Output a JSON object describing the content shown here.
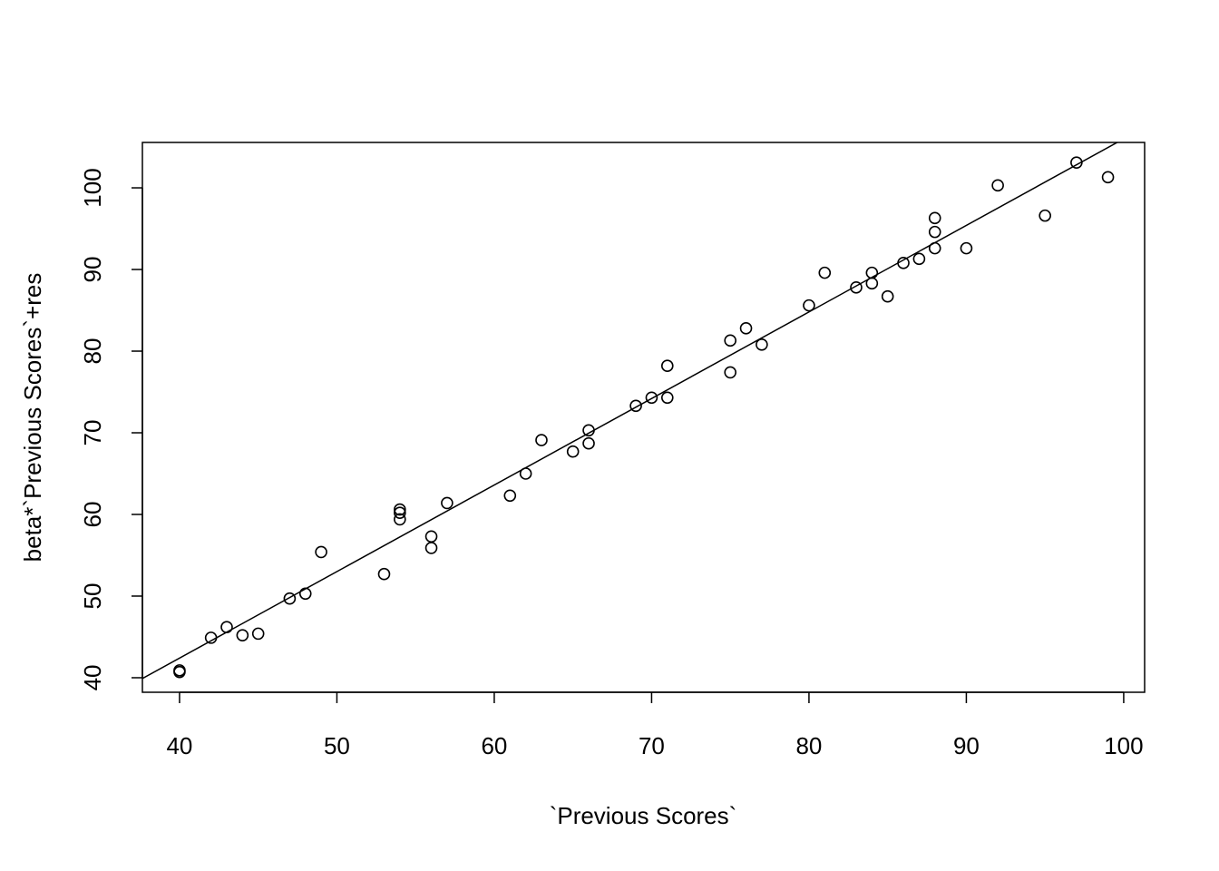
{
  "chart_data": {
    "type": "scatter",
    "x_label": "`Previous Scores`",
    "y_label": "beta*`Previous Scores`+res",
    "xlim": [
      37.64,
      101.33
    ],
    "ylim": [
      38.22,
      105.56
    ],
    "xticks": [
      40,
      50,
      60,
      70,
      80,
      90,
      100
    ],
    "yticks": [
      40,
      50,
      60,
      70,
      80,
      90,
      100
    ],
    "color": "#000000",
    "fit_line": {
      "intercept": 0,
      "slope": 1.06
    },
    "x": [
      40,
      40,
      42,
      43,
      44,
      45,
      47,
      48,
      49,
      53,
      54,
      54,
      54,
      56,
      56,
      57,
      61,
      62,
      63,
      65,
      66,
      66,
      69,
      70,
      71,
      71,
      75,
      75,
      76,
      77,
      80,
      81,
      83,
      84,
      84,
      85,
      86,
      87,
      88,
      88,
      88,
      90,
      92,
      95,
      97,
      99
    ],
    "y": [
      40.9,
      40.7,
      44.9,
      46.2,
      45.2,
      45.4,
      49.7,
      50.3,
      55.4,
      52.7,
      60.6,
      60.2,
      59.4,
      57.3,
      55.9,
      61.4,
      62.3,
      65.0,
      69.1,
      67.7,
      70.3,
      68.7,
      73.3,
      74.3,
      74.3,
      78.2,
      81.3,
      77.4,
      82.8,
      80.8,
      85.6,
      89.6,
      87.8,
      89.6,
      88.3,
      86.7,
      90.8,
      91.3,
      96.3,
      94.6,
      92.6,
      92.6,
      100.3,
      96.6,
      103.1,
      101.3
    ]
  }
}
